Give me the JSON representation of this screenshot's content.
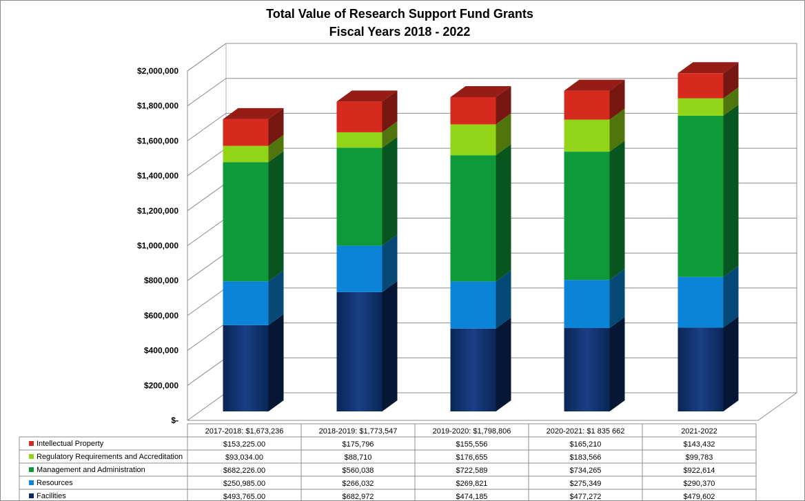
{
  "chart_data": {
    "type": "bar",
    "stacked": true,
    "style": "3d",
    "title": [
      "Total Value of Research Support Fund Grants",
      "Fiscal Years 2018 - 2022"
    ],
    "categories": [
      "2017-2018:  $1,673,236",
      "2018-2019:  $1,773,547",
      "2019-2020:  $1,798,806",
      "2020-2021:  $1 835 662",
      "2021-2022"
    ],
    "ylim": [
      0,
      2000000
    ],
    "yticks": [
      {
        "value": 0,
        "label": "$-"
      },
      {
        "value": 200000,
        "label": "$200,000"
      },
      {
        "value": 400000,
        "label": "$400,000"
      },
      {
        "value": 600000,
        "label": "$600,000"
      },
      {
        "value": 800000,
        "label": "$800,000"
      },
      {
        "value": 1000000,
        "label": "$1,000,000"
      },
      {
        "value": 1200000,
        "label": "$1,200,000"
      },
      {
        "value": 1400000,
        "label": "$1,400,000"
      },
      {
        "value": 1600000,
        "label": "$1,600,000"
      },
      {
        "value": 1800000,
        "label": "$1,800,000"
      },
      {
        "value": 2000000,
        "label": "$2,000,000"
      }
    ],
    "grid": true,
    "legend_position": "data table below chart",
    "series": [
      {
        "name": "Intellectual Property",
        "color": "#d62a1e",
        "values": [
          153225,
          175796,
          155556,
          165210,
          143432
        ],
        "labels": [
          "$153,225.00",
          "$175,796",
          "$155,556",
          "$165,210",
          "$143,432"
        ]
      },
      {
        "name": "Regulatory Requirements and Accreditation",
        "color": "#92d418",
        "values": [
          93034,
          88710,
          176655,
          183566,
          99783
        ],
        "labels": [
          "$93,034.00",
          "$88,710",
          "$176,655",
          "$183,566",
          "$99,783"
        ]
      },
      {
        "name": "Management and Administration",
        "color": "#0f9a3a",
        "values": [
          682226,
          560038,
          722589,
          734265,
          922614
        ],
        "labels": [
          "$682,226.00",
          "$560,038",
          "$722,589",
          "$734,265",
          "$922,614"
        ]
      },
      {
        "name": "Resources",
        "color": "#0b84d8",
        "values": [
          250985,
          266032,
          269821,
          275349,
          290370
        ],
        "labels": [
          "$250,985.00",
          "$266,032",
          "$269,821",
          "$275,349",
          "$290,370"
        ]
      },
      {
        "name": "Facilities",
        "color": "#0a2a63",
        "values": [
          493765,
          682972,
          474185,
          477272,
          479602
        ],
        "labels": [
          "$493,765.00",
          "$682,972",
          "$474,185",
          "$477,272",
          "$479,602"
        ]
      }
    ]
  }
}
